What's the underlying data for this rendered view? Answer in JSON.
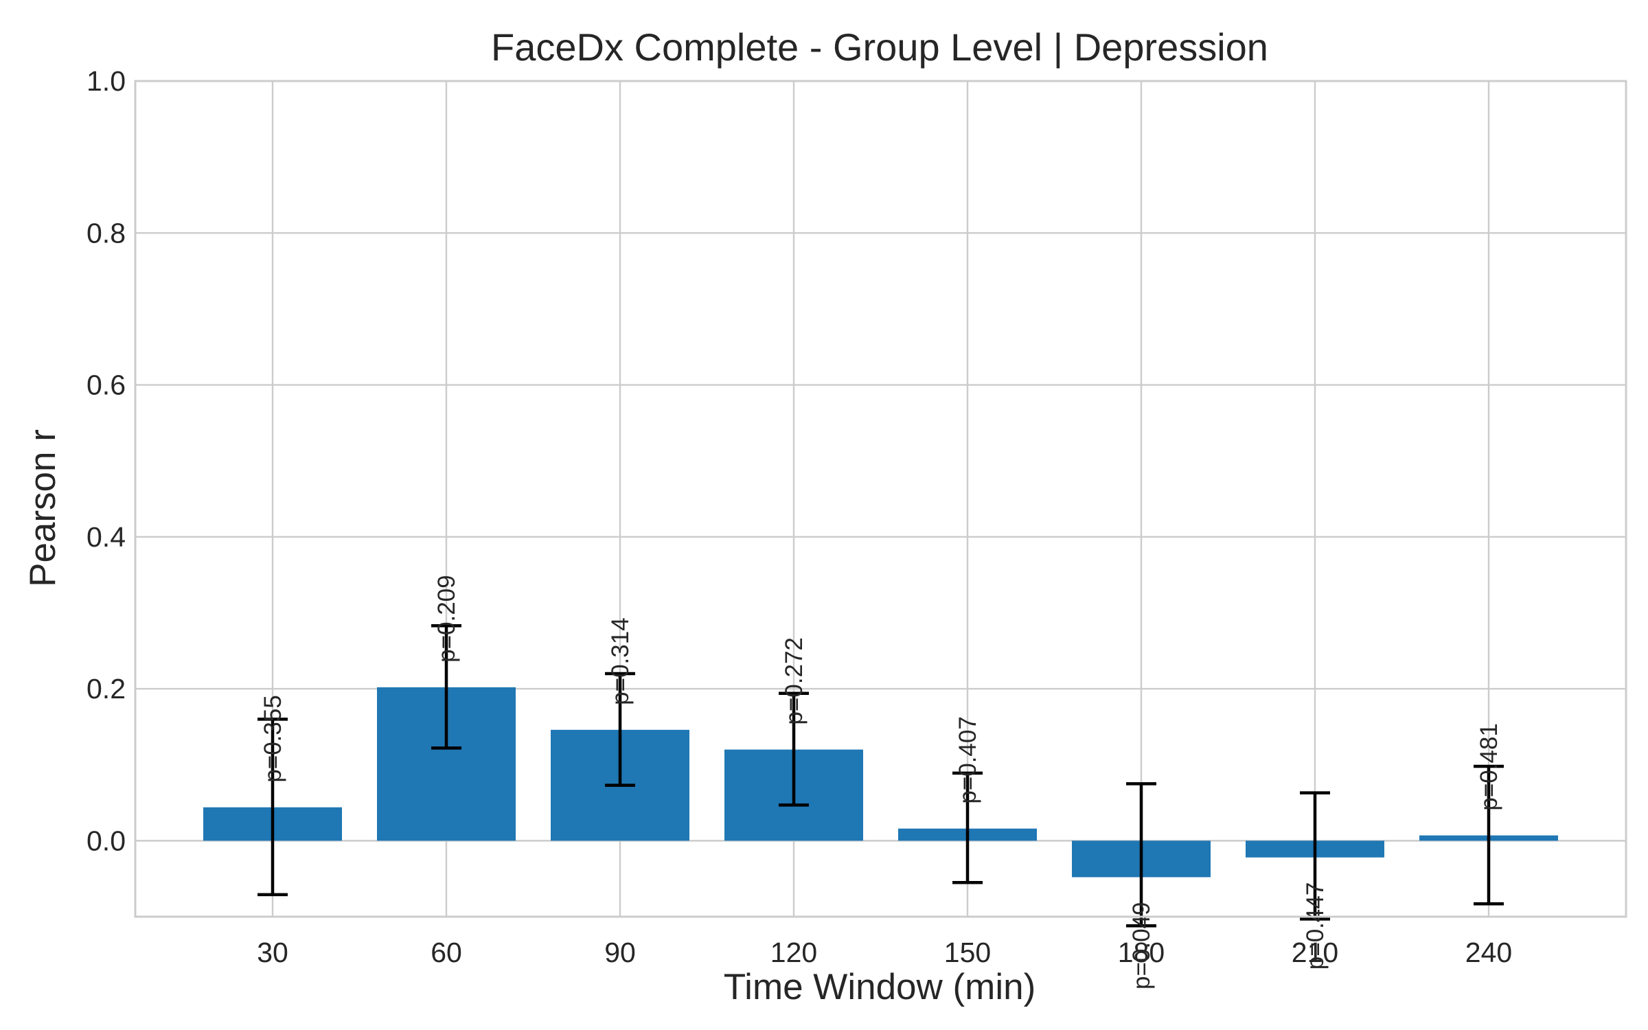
{
  "chart_data": {
    "type": "bar",
    "title": "FaceDx Complete - Group Level | Depression",
    "xlabel": "Time Window (min)",
    "ylabel": "Pearson r",
    "categories": [
      "30",
      "60",
      "90",
      "120",
      "150",
      "180",
      "210",
      "240"
    ],
    "values": [
      0.044,
      0.202,
      0.146,
      0.12,
      0.016,
      -0.048,
      -0.022,
      0.007
    ],
    "err_low": [
      -0.071,
      0.122,
      0.073,
      0.047,
      -0.055,
      -0.112,
      -0.103,
      -0.083
    ],
    "err_high": [
      0.16,
      0.283,
      0.22,
      0.194,
      0.089,
      0.075,
      0.063,
      0.098
    ],
    "p_labels": [
      "p=0.355",
      "p=0.209",
      "p=0.314",
      "p=0.272",
      "p=0.407",
      "p=0.049",
      "p=0.447",
      "p=0.481"
    ],
    "ylim": [
      -0.1,
      1.0
    ],
    "yticks": [
      "1.0",
      "0.8",
      "0.6",
      "0.4",
      "0.2",
      "0.0"
    ],
    "ytick_values": [
      1.0,
      0.8,
      0.6,
      0.4,
      0.2,
      0.0
    ],
    "grid": true,
    "bar_color": "#1f77b4"
  }
}
